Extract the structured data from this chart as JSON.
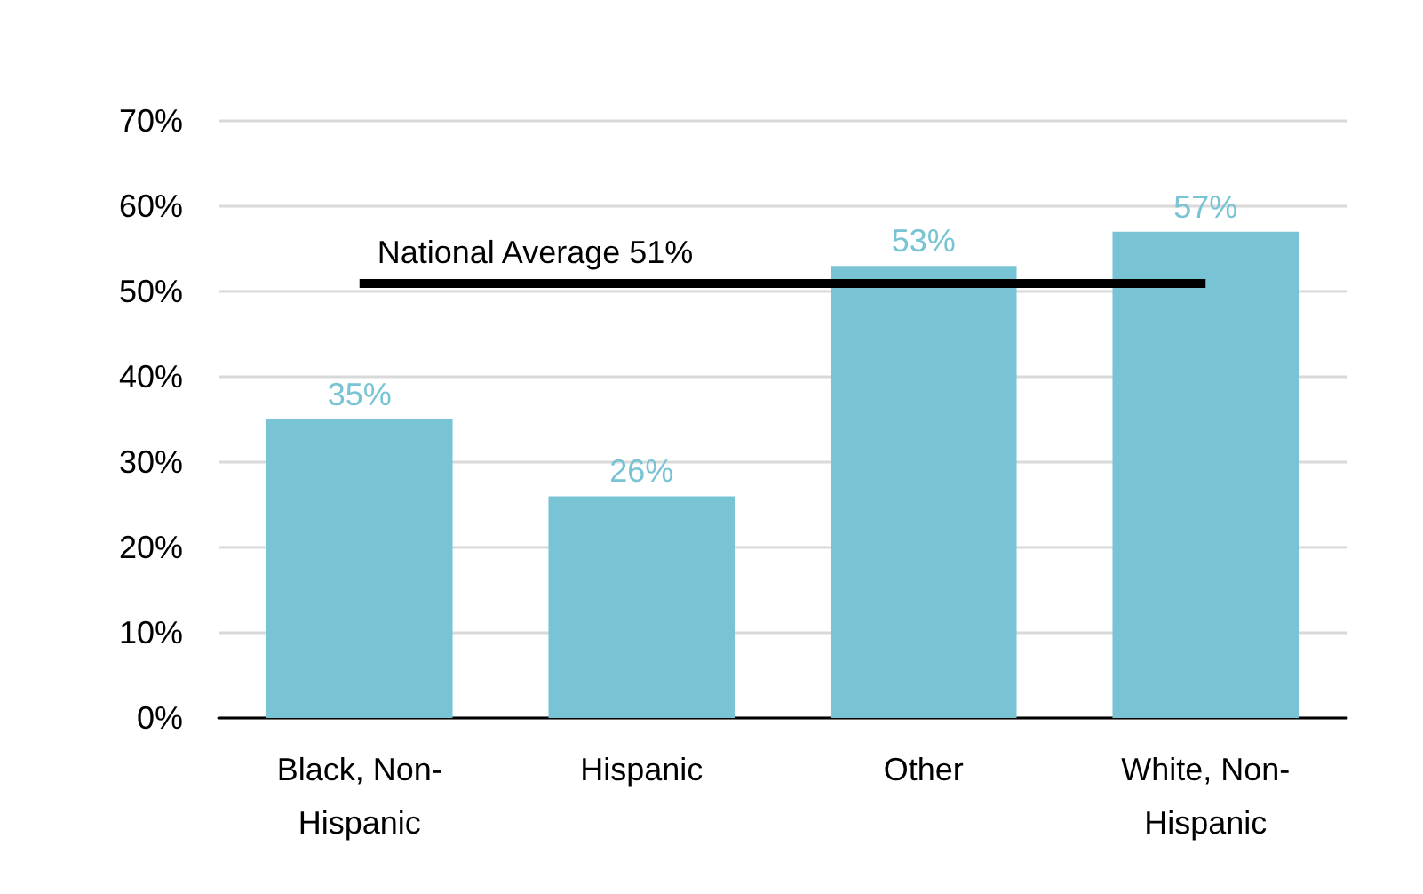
{
  "chart_data": {
    "type": "bar",
    "categories": [
      "Black, Non-\nHispanic",
      "Hispanic",
      "Other",
      "White, Non-\nHispanic"
    ],
    "values": [
      35,
      26,
      53,
      57
    ],
    "color": "#78c4d4",
    "value_labels": [
      "35%",
      "26%",
      "53%",
      "57%"
    ],
    "ylim": [
      0,
      70
    ],
    "yticks": [
      {
        "value": 0,
        "label": "0%"
      },
      {
        "value": 10,
        "label": "10%"
      },
      {
        "value": 20,
        "label": "20%"
      },
      {
        "value": 30,
        "label": "30%"
      },
      {
        "value": 40,
        "label": "40%"
      },
      {
        "value": 50,
        "label": "50%"
      },
      {
        "value": 60,
        "label": "60%"
      },
      {
        "value": 70,
        "label": "70%"
      }
    ],
    "grid": "y",
    "ref_lines": [
      {
        "axis": "y",
        "value": 51,
        "label": "National Average 51%",
        "color": "#000000"
      }
    ]
  }
}
